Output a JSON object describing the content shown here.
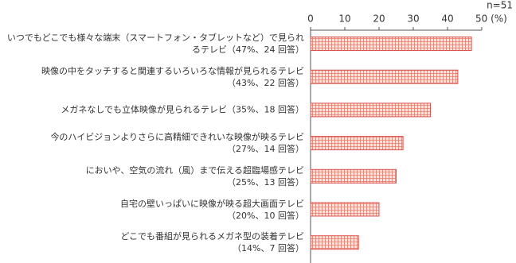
{
  "chart_data": {
    "type": "bar",
    "orientation": "horizontal",
    "note": "n=51",
    "categories": [
      "いつでもどこでも様々な端末（スマートフォン・タブレットなど）で見られるテレビ",
      "映像の中をタッチすると関連するいろいろな情報が見られるテレビ",
      "メガネなしでも立体映像が見られるテレビ",
      "今のハイビジョンよりさらに高精細できれいな映像が映るテレビ",
      "においや、空気の流れ（風）まで伝える超臨場感テレビ",
      "自宅の壁いっぱいに映像が映る超大画面テレビ",
      "どこでも番組が見られるメガネ型の装着テレビ"
    ],
    "values": [
      47,
      43,
      35,
      27,
      25,
      20,
      14
    ],
    "value_labels": [
      "（47%、24 回答）",
      "（43%、22 回答）",
      "（35%、18 回答）",
      "（27%、14 回答）",
      "（25%、13 回答）",
      "（20%、10 回答）",
      "（14%、7 回答）"
    ],
    "color": "#d9534f",
    "xlim": [
      0,
      50
    ],
    "xticks": [
      0,
      10,
      20,
      30,
      40,
      {
        "value": 50,
        "label": "50 (%)"
      }
    ]
  }
}
